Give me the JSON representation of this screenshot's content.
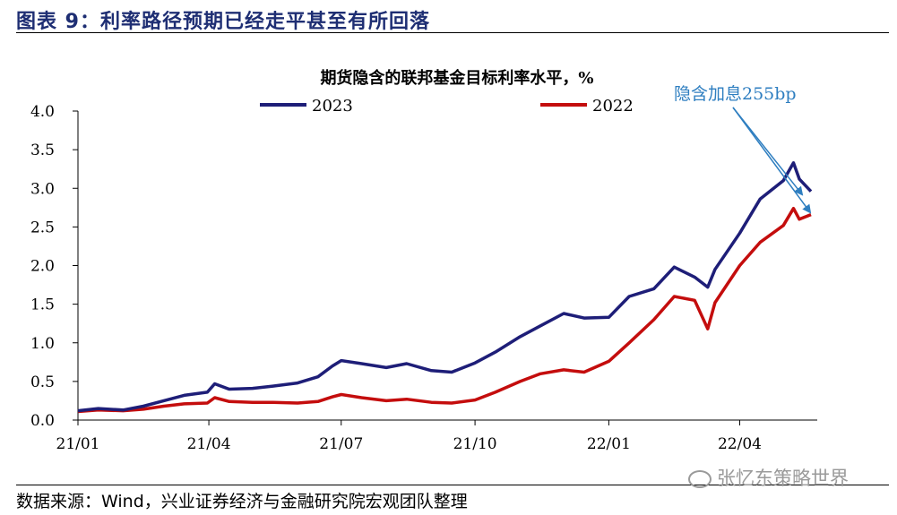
{
  "figure_title": "图表 9：利率路径预期已经走平甚至有所回落",
  "source": "数据来源：Wind，兴业证券经济与金融研究院宏观团队整理",
  "watermark": "张忆东策略世界",
  "chart_data": {
    "type": "line",
    "title": "期货隐含的联邦基金目标利率水平，%",
    "annotation": "隐含加息255bp",
    "xlabel": "",
    "ylabel": "",
    "x_ticks": [
      "21/01",
      "21/04",
      "21/07",
      "21/10",
      "22/01",
      "22/04"
    ],
    "x_range": [
      "2021-01-01",
      "2022-05-20"
    ],
    "y_ticks": [
      "0.0",
      "0.5",
      "1.0",
      "1.5",
      "2.0",
      "2.5",
      "3.0",
      "3.5",
      "4.0"
    ],
    "ylim": [
      0,
      4
    ],
    "grid": false,
    "legend_position": "top-center",
    "colors": {
      "2023": "#1e1e78",
      "2022": "#c40d0d",
      "annotation": "#2e7ec0"
    },
    "series": [
      {
        "name": "2023",
        "points": [
          [
            "2021-01-01",
            0.12
          ],
          [
            "2021-01-15",
            0.15
          ],
          [
            "2021-02-01",
            0.13
          ],
          [
            "2021-02-15",
            0.18
          ],
          [
            "2021-03-01",
            0.25
          ],
          [
            "2021-03-15",
            0.32
          ],
          [
            "2021-03-31",
            0.36
          ],
          [
            "2021-04-05",
            0.47
          ],
          [
            "2021-04-15",
            0.4
          ],
          [
            "2021-05-01",
            0.41
          ],
          [
            "2021-05-15",
            0.44
          ],
          [
            "2021-06-01",
            0.48
          ],
          [
            "2021-06-15",
            0.56
          ],
          [
            "2021-06-25",
            0.7
          ],
          [
            "2021-07-01",
            0.77
          ],
          [
            "2021-07-15",
            0.73
          ],
          [
            "2021-08-01",
            0.68
          ],
          [
            "2021-08-15",
            0.73
          ],
          [
            "2021-09-01",
            0.64
          ],
          [
            "2021-09-15",
            0.62
          ],
          [
            "2021-10-01",
            0.74
          ],
          [
            "2021-10-15",
            0.88
          ],
          [
            "2021-11-01",
            1.08
          ],
          [
            "2021-11-15",
            1.22
          ],
          [
            "2021-12-01",
            1.38
          ],
          [
            "2021-12-15",
            1.32
          ],
          [
            "2022-01-01",
            1.33
          ],
          [
            "2022-01-15",
            1.6
          ],
          [
            "2022-02-01",
            1.7
          ],
          [
            "2022-02-15",
            1.98
          ],
          [
            "2022-03-01",
            1.85
          ],
          [
            "2022-03-10",
            1.72
          ],
          [
            "2022-03-15",
            1.95
          ],
          [
            "2022-04-01",
            2.42
          ],
          [
            "2022-04-15",
            2.86
          ],
          [
            "2022-05-01",
            3.1
          ],
          [
            "2022-05-08",
            3.33
          ],
          [
            "2022-05-12",
            3.12
          ],
          [
            "2022-05-20",
            2.96
          ]
        ]
      },
      {
        "name": "2022",
        "points": [
          [
            "2021-01-01",
            0.11
          ],
          [
            "2021-01-15",
            0.13
          ],
          [
            "2021-02-01",
            0.12
          ],
          [
            "2021-02-15",
            0.14
          ],
          [
            "2021-03-01",
            0.18
          ],
          [
            "2021-03-15",
            0.21
          ],
          [
            "2021-03-31",
            0.22
          ],
          [
            "2021-04-05",
            0.29
          ],
          [
            "2021-04-15",
            0.24
          ],
          [
            "2021-05-01",
            0.23
          ],
          [
            "2021-05-15",
            0.23
          ],
          [
            "2021-06-01",
            0.22
          ],
          [
            "2021-06-15",
            0.24
          ],
          [
            "2021-06-25",
            0.3
          ],
          [
            "2021-07-01",
            0.33
          ],
          [
            "2021-07-15",
            0.29
          ],
          [
            "2021-08-01",
            0.25
          ],
          [
            "2021-08-15",
            0.27
          ],
          [
            "2021-09-01",
            0.23
          ],
          [
            "2021-09-15",
            0.22
          ],
          [
            "2021-10-01",
            0.26
          ],
          [
            "2021-10-15",
            0.36
          ],
          [
            "2021-11-01",
            0.5
          ],
          [
            "2021-11-15",
            0.6
          ],
          [
            "2021-12-01",
            0.65
          ],
          [
            "2021-12-15",
            0.62
          ],
          [
            "2022-01-01",
            0.76
          ],
          [
            "2022-01-15",
            1.0
          ],
          [
            "2022-02-01",
            1.3
          ],
          [
            "2022-02-15",
            1.6
          ],
          [
            "2022-03-01",
            1.55
          ],
          [
            "2022-03-10",
            1.18
          ],
          [
            "2022-03-15",
            1.52
          ],
          [
            "2022-04-01",
            2.0
          ],
          [
            "2022-04-15",
            2.3
          ],
          [
            "2022-05-01",
            2.52
          ],
          [
            "2022-05-08",
            2.74
          ],
          [
            "2022-05-12",
            2.6
          ],
          [
            "2022-05-20",
            2.66
          ]
        ]
      }
    ]
  }
}
